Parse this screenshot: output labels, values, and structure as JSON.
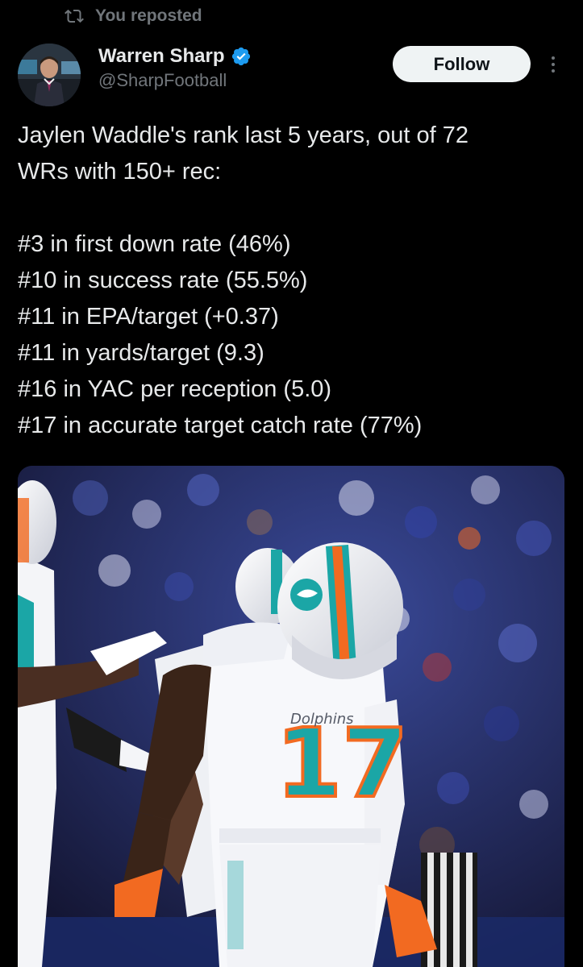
{
  "repost": {
    "label": "You reposted",
    "icon": "repost-icon"
  },
  "author": {
    "name": "Warren Sharp",
    "handle": "@SharpFootball",
    "verified": true,
    "avatar": "avatar",
    "verified_color": "#1d9bf0"
  },
  "actions": {
    "follow_label": "Follow",
    "more_icon": "more-options-icon"
  },
  "tweet": {
    "lines": [
      "Jaylen Waddle's rank last 5 years, out of 72",
      "WRs with 150+ rec:",
      "",
      "#3 in first down rate (46%)",
      "#10 in success rate (55.5%)",
      "#11 in EPA/target (+0.37)",
      "#11 in yards/target (9.3)",
      "#16 in YAC per reception (5.0)",
      "#17 in accurate target catch rate (77%)"
    ]
  },
  "media": {
    "jersey_number": "17",
    "jersey_wordmark": "Dolphins",
    "colors": {
      "aqua": "#1ba6a6",
      "orange": "#f26a21",
      "crowd_blue": "#2c3a8c"
    }
  }
}
